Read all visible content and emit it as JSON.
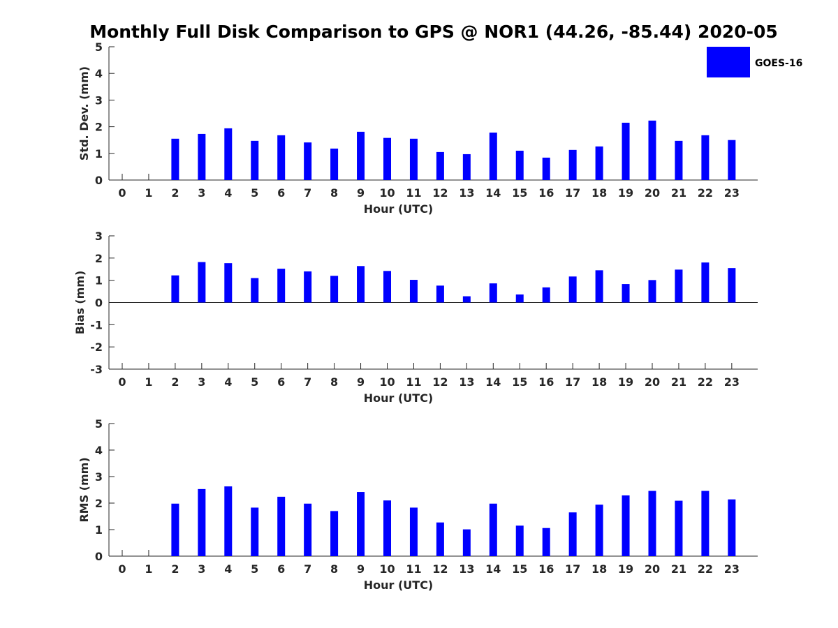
{
  "figure": {
    "title": "Monthly Full Disk Comparison to GPS @ NOR1 (44.26, -85.44) 2020-05",
    "legend": {
      "label": "GOES-16",
      "color": "#0000ff",
      "placement": "top-right"
    }
  },
  "chart_data": [
    {
      "type": "bar",
      "xlabel": "Hour (UTC)",
      "ylabel": "Std. Dev. (mm)",
      "ylim": [
        0,
        5
      ],
      "yticks": [
        0,
        1,
        2,
        3,
        4,
        5
      ],
      "categories": [
        "0",
        "1",
        "2",
        "3",
        "4",
        "5",
        "6",
        "7",
        "8",
        "9",
        "10",
        "11",
        "12",
        "13",
        "14",
        "15",
        "16",
        "17",
        "18",
        "19",
        "20",
        "21",
        "22",
        "23"
      ],
      "series": [
        {
          "name": "GOES-16",
          "color": "#0000ff",
          "values": [
            null,
            null,
            1.55,
            1.73,
            1.94,
            1.47,
            1.68,
            1.41,
            1.18,
            1.81,
            1.58,
            1.55,
            1.05,
            0.97,
            1.78,
            1.1,
            0.84,
            1.13,
            1.26,
            2.15,
            2.23,
            1.47,
            1.68,
            1.5
          ]
        }
      ]
    },
    {
      "type": "bar",
      "xlabel": "Hour (UTC)",
      "ylabel": "Bias (mm)",
      "ylim": [
        -3,
        3
      ],
      "yticks": [
        -3,
        -2,
        -1,
        0,
        1,
        2,
        3
      ],
      "categories": [
        "0",
        "1",
        "2",
        "3",
        "4",
        "5",
        "6",
        "7",
        "8",
        "9",
        "10",
        "11",
        "12",
        "13",
        "14",
        "15",
        "16",
        "17",
        "18",
        "19",
        "20",
        "21",
        "22",
        "23"
      ],
      "series": [
        {
          "name": "GOES-16",
          "color": "#0000ff",
          "values": [
            null,
            null,
            1.22,
            1.82,
            1.77,
            1.1,
            1.52,
            1.4,
            1.2,
            1.64,
            1.42,
            1.02,
            0.76,
            0.28,
            0.86,
            0.36,
            0.68,
            1.17,
            1.45,
            0.83,
            1.01,
            1.48,
            1.8,
            1.55
          ]
        }
      ]
    },
    {
      "type": "bar",
      "xlabel": "Hour (UTC)",
      "ylabel": "RMS (mm)",
      "ylim": [
        0,
        5
      ],
      "yticks": [
        0,
        1,
        2,
        3,
        4,
        5
      ],
      "categories": [
        "0",
        "1",
        "2",
        "3",
        "4",
        "5",
        "6",
        "7",
        "8",
        "9",
        "10",
        "11",
        "12",
        "13",
        "14",
        "15",
        "16",
        "17",
        "18",
        "19",
        "20",
        "21",
        "22",
        "23"
      ],
      "series": [
        {
          "name": "GOES-16",
          "color": "#0000ff",
          "values": [
            null,
            null,
            1.98,
            2.53,
            2.63,
            1.83,
            2.24,
            1.98,
            1.7,
            2.42,
            2.1,
            1.83,
            1.27,
            1.01,
            1.98,
            1.15,
            1.06,
            1.65,
            1.94,
            2.29,
            2.46,
            2.09,
            2.46,
            2.14
          ]
        }
      ]
    }
  ]
}
